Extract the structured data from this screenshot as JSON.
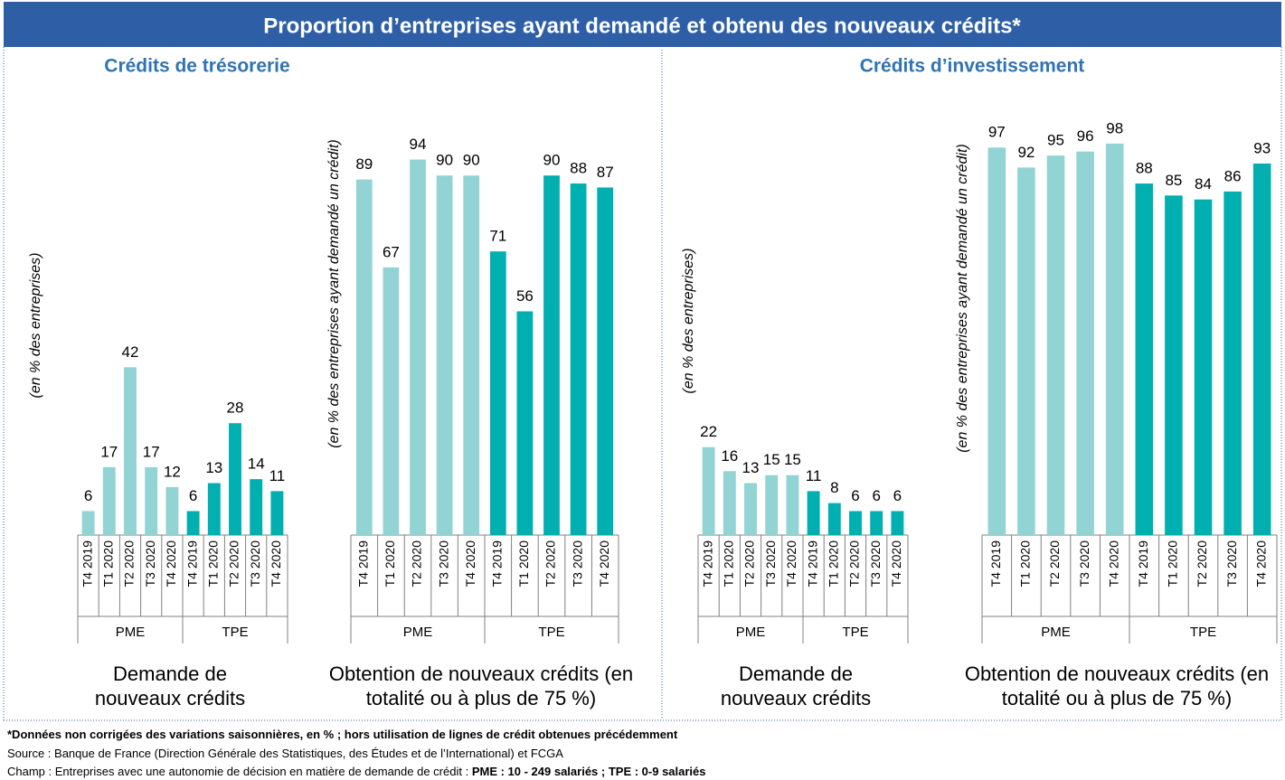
{
  "title": "Proportion d’entreprises ayant demandé et obtenu des nouveaux crédits*",
  "sections": [
    "Crédits de trésorerie",
    "Crédits d’investissement"
  ],
  "chart_data": [
    {
      "type": "bar",
      "title": "Demande de nouveaux crédits",
      "y_label": "(en % des entreprises)",
      "categories": [
        "T4 2019",
        "T1 2020",
        "T2 2020",
        "T3 2020",
        "T4 2020"
      ],
      "ylim": [
        0,
        100
      ],
      "series": [
        {
          "name": "PME",
          "color": "#92d3d4",
          "values": [
            6,
            17,
            42,
            17,
            12
          ]
        },
        {
          "name": "TPE",
          "color": "#00afb0",
          "values": [
            6,
            13,
            28,
            14,
            11
          ]
        }
      ]
    },
    {
      "type": "bar",
      "title": "Obtention de nouveaux crédits (en totalité ou à plus de 75 %)",
      "y_label": "(en % des entreprises ayant demandé un crédit)",
      "categories": [
        "T4 2019",
        "T1 2020",
        "T2 2020",
        "T3 2020",
        "T4 2020"
      ],
      "ylim": [
        0,
        100
      ],
      "series": [
        {
          "name": "PME",
          "color": "#92d3d4",
          "values": [
            89,
            67,
            94,
            90,
            90
          ]
        },
        {
          "name": "TPE",
          "color": "#00afb0",
          "values": [
            71,
            56,
            90,
            88,
            87
          ]
        }
      ]
    },
    {
      "type": "bar",
      "title": "Demande de nouveaux crédits",
      "y_label": "(en % des entreprises)",
      "categories": [
        "T4 2019",
        "T1 2020",
        "T2 2020",
        "T3 2020",
        "T4 2020"
      ],
      "ylim": [
        0,
        100
      ],
      "series": [
        {
          "name": "PME",
          "color": "#92d3d4",
          "values": [
            22,
            16,
            13,
            15,
            15
          ]
        },
        {
          "name": "TPE",
          "color": "#00afb0",
          "values": [
            11,
            8,
            6,
            6,
            6
          ]
        }
      ]
    },
    {
      "type": "bar",
      "title": "Obtention de nouveaux crédits (en totalité ou à plus de 75 %)",
      "y_label": "(en % des entreprises ayant demandé un crédit)",
      "categories": [
        "T4 2019",
        "T1 2020",
        "T2 2020",
        "T3 2020",
        "T4 2020"
      ],
      "ylim": [
        0,
        100
      ],
      "series": [
        {
          "name": "PME",
          "color": "#92d3d4",
          "values": [
            97,
            92,
            95,
            96,
            98
          ]
        },
        {
          "name": "TPE",
          "color": "#00afb0",
          "values": [
            88,
            85,
            84,
            86,
            93
          ]
        }
      ]
    }
  ],
  "footnotes": [
    {
      "text": "*Données non corrigées des variations saisonnières, en % ; hors utilisation de lignes de crédit obtenues précédemment"
    },
    {
      "text": "Source : Banque de France (Direction Générale des Statistiques, des Études et de l’International) et FCGA"
    },
    {
      "text": "Champ : Entreprises avec une autonomie de décision en matière de demande de crédit : ",
      "bold": "PME : 10 - 249 salariés ; TPE : 0-9 salariés"
    }
  ]
}
